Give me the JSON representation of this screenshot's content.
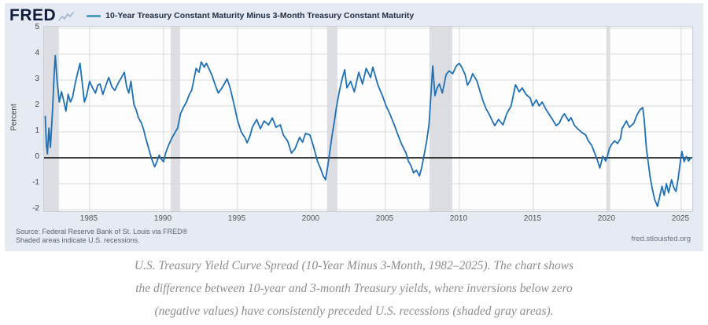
{
  "header": {
    "logo": "FRED",
    "legend_label": "10-Year Treasury Constant Maturity Minus 3-Month Treasury Constant Maturity"
  },
  "chart": {
    "y_axis_label": "Percent"
  },
  "footer": {
    "source_line1": "Source: Federal Reserve Bank of St. Louis via FRED®",
    "source_line2": "Shaded areas indicate U.S. recessions.",
    "site": "fred.stlouisfed.org"
  },
  "caption": {
    "line1": "U.S. Treasury Yield Curve Spread (10-Year Minus 3-Month, 1982–2025). The chart shows",
    "line2": "the difference between 10-year and 3-month Treasury yields, where inversions below zero",
    "line3": "(negative values) have consistently preceded U.S. recessions (shaded gray areas)."
  },
  "colors": {
    "line": "#1e6fb5",
    "legend_swatch": "#4f9fba",
    "recession_band": "#dcdee3",
    "panel_bg": "#e6eaf3",
    "grid": "#d9d9d9",
    "zero_line": "#000000",
    "logo": "#101c3d"
  },
  "chart_data": {
    "type": "line",
    "title": "10-Year Treasury Constant Maturity Minus 3-Month Treasury Constant Maturity",
    "ylabel": "Percent",
    "xlabel": "",
    "ylim": [
      -2,
      5
    ],
    "xlim": [
      1982,
      2025.75
    ],
    "y_ticks": [
      5,
      4,
      3,
      2,
      1,
      0,
      -1,
      -2
    ],
    "x_ticks": [
      1985,
      1990,
      1995,
      2000,
      2005,
      2010,
      2015,
      2020,
      2025
    ],
    "grid": true,
    "legend_position": "top",
    "zero_line": true,
    "recessions": [
      [
        1981.92,
        1982.92
      ],
      [
        1990.48,
        1991.12
      ],
      [
        2001.06,
        2001.75
      ],
      [
        2007.98,
        2009.52
      ],
      [
        2019.95,
        2020.2
      ]
    ],
    "series": [
      {
        "name": "10-Year Treasury Constant Maturity Minus 3-Month Treasury Constant Maturity",
        "x": [
          1982.0,
          1982.08,
          1982.15,
          1982.25,
          1982.35,
          1982.5,
          1982.6,
          1982.68,
          1982.8,
          1982.95,
          1983.1,
          1983.25,
          1983.4,
          1983.55,
          1983.7,
          1983.85,
          1984.0,
          1984.2,
          1984.35,
          1984.5,
          1984.65,
          1984.8,
          1985.0,
          1985.2,
          1985.4,
          1985.55,
          1985.7,
          1985.9,
          1986.1,
          1986.3,
          1986.5,
          1986.7,
          1986.95,
          1987.2,
          1987.35,
          1987.5,
          1987.65,
          1987.8,
          1988.0,
          1988.15,
          1988.3,
          1988.5,
          1988.65,
          1988.8,
          1989.0,
          1989.2,
          1989.4,
          1989.55,
          1989.7,
          1989.85,
          1990.0,
          1990.15,
          1990.35,
          1990.55,
          1990.75,
          1990.95,
          1991.15,
          1991.35,
          1991.55,
          1991.75,
          1991.9,
          1992.05,
          1992.2,
          1992.4,
          1992.55,
          1992.75,
          1992.9,
          1993.1,
          1993.3,
          1993.5,
          1993.7,
          1993.9,
          1994.1,
          1994.3,
          1994.5,
          1994.75,
          1995.0,
          1995.25,
          1995.5,
          1995.65,
          1995.85,
          1996.0,
          1996.3,
          1996.55,
          1996.8,
          1997.1,
          1997.35,
          1997.6,
          1997.9,
          1998.1,
          1998.4,
          1998.65,
          1998.9,
          1999.2,
          1999.4,
          1999.6,
          1999.9,
          2000.15,
          2000.4,
          2000.6,
          2000.8,
          2000.95,
          2001.1,
          2001.25,
          2001.4,
          2001.55,
          2001.7,
          2001.9,
          2002.1,
          2002.25,
          2002.4,
          2002.65,
          2002.9,
          2003.2,
          2003.45,
          2003.7,
          2004.0,
          2004.15,
          2004.5,
          2004.8,
          2005.05,
          2005.3,
          2005.6,
          2005.85,
          2006.1,
          2006.4,
          2006.55,
          2006.75,
          2006.9,
          2007.1,
          2007.3,
          2007.45,
          2007.6,
          2007.8,
          2007.95,
          2008.1,
          2008.2,
          2008.35,
          2008.5,
          2008.65,
          2008.85,
          2009.1,
          2009.3,
          2009.55,
          2009.8,
          2010.0,
          2010.2,
          2010.4,
          2010.55,
          2010.75,
          2010.9,
          2011.2,
          2011.35,
          2011.6,
          2011.8,
          2012.0,
          2012.25,
          2012.4,
          2012.65,
          2012.95,
          2013.2,
          2013.5,
          2013.8,
          2014.05,
          2014.25,
          2014.5,
          2014.8,
          2014.95,
          2015.2,
          2015.4,
          2015.6,
          2015.85,
          2016.05,
          2016.3,
          2016.55,
          2016.75,
          2016.95,
          2017.1,
          2017.4,
          2017.55,
          2017.8,
          2018.0,
          2018.3,
          2018.55,
          2018.7,
          2018.95,
          2019.15,
          2019.35,
          2019.5,
          2019.7,
          2019.9,
          2020.05,
          2020.15,
          2020.3,
          2020.5,
          2020.7,
          2020.9,
          2021.0,
          2021.3,
          2021.5,
          2021.8,
          2022.0,
          2022.2,
          2022.4,
          2022.5,
          2022.65,
          2022.75,
          2022.9,
          2023.05,
          2023.2,
          2023.4,
          2023.55,
          2023.7,
          2023.85,
          2024.0,
          2024.15,
          2024.35,
          2024.5,
          2024.65,
          2024.8,
          2024.95,
          2025.05,
          2025.2,
          2025.35,
          2025.5,
          2025.65
        ],
        "y": [
          1.6,
          0.5,
          0.15,
          1.15,
          0.4,
          1.9,
          3.2,
          3.95,
          3.0,
          2.15,
          2.55,
          2.2,
          1.8,
          2.45,
          2.15,
          2.35,
          2.8,
          3.3,
          3.65,
          2.9,
          2.15,
          2.4,
          2.95,
          2.7,
          2.5,
          2.8,
          2.85,
          2.45,
          2.8,
          3.1,
          2.75,
          2.6,
          2.9,
          3.15,
          3.3,
          2.75,
          2.5,
          2.95,
          2.05,
          1.85,
          1.55,
          1.35,
          1.1,
          0.75,
          0.35,
          -0.05,
          -0.35,
          -0.15,
          0.1,
          -0.05,
          -0.15,
          0.2,
          0.5,
          0.75,
          0.95,
          1.15,
          1.7,
          1.95,
          2.15,
          2.45,
          2.6,
          3.0,
          3.45,
          3.3,
          3.7,
          3.5,
          3.65,
          3.4,
          3.15,
          2.8,
          2.5,
          2.65,
          2.85,
          3.05,
          2.7,
          2.1,
          1.45,
          1.0,
          0.78,
          0.58,
          0.85,
          1.18,
          1.48,
          1.12,
          1.42,
          1.27,
          1.54,
          1.18,
          1.27,
          0.88,
          0.64,
          0.18,
          0.36,
          0.79,
          0.6,
          0.94,
          0.88,
          0.42,
          -0.12,
          -0.39,
          -0.7,
          -0.85,
          -0.33,
          0.27,
          0.88,
          1.39,
          2.0,
          2.6,
          3.1,
          3.4,
          2.7,
          2.95,
          2.55,
          3.3,
          2.85,
          3.45,
          3.1,
          3.5,
          2.8,
          2.4,
          2.0,
          1.7,
          1.27,
          0.88,
          0.52,
          0.18,
          -0.12,
          -0.33,
          -0.58,
          -0.48,
          -0.7,
          -0.39,
          0.06,
          0.67,
          1.3,
          2.6,
          3.55,
          2.4,
          2.7,
          2.85,
          2.5,
          3.2,
          3.35,
          3.25,
          3.55,
          3.65,
          3.45,
          3.2,
          2.8,
          3.0,
          3.25,
          2.95,
          2.65,
          2.2,
          1.9,
          1.7,
          1.4,
          1.24,
          1.48,
          1.27,
          1.7,
          2.0,
          2.82,
          2.55,
          2.7,
          2.45,
          2.3,
          2.0,
          2.24,
          2.0,
          2.15,
          1.88,
          1.7,
          1.48,
          1.24,
          1.33,
          1.58,
          1.7,
          1.42,
          1.55,
          1.24,
          1.12,
          0.97,
          0.88,
          0.67,
          0.48,
          0.18,
          -0.12,
          -0.39,
          0.06,
          -0.12,
          0.15,
          0.36,
          0.52,
          0.65,
          0.55,
          0.75,
          1.12,
          1.42,
          1.18,
          1.33,
          1.64,
          1.85,
          1.94,
          1.48,
          0.36,
          -0.08,
          -0.73,
          -1.2,
          -1.6,
          -1.88,
          -1.5,
          -1.1,
          -1.45,
          -1.0,
          -1.35,
          -0.85,
          -1.15,
          -1.3,
          -0.8,
          -0.1,
          0.25,
          -0.15,
          0.05,
          -0.12,
          0.0
        ]
      }
    ]
  }
}
